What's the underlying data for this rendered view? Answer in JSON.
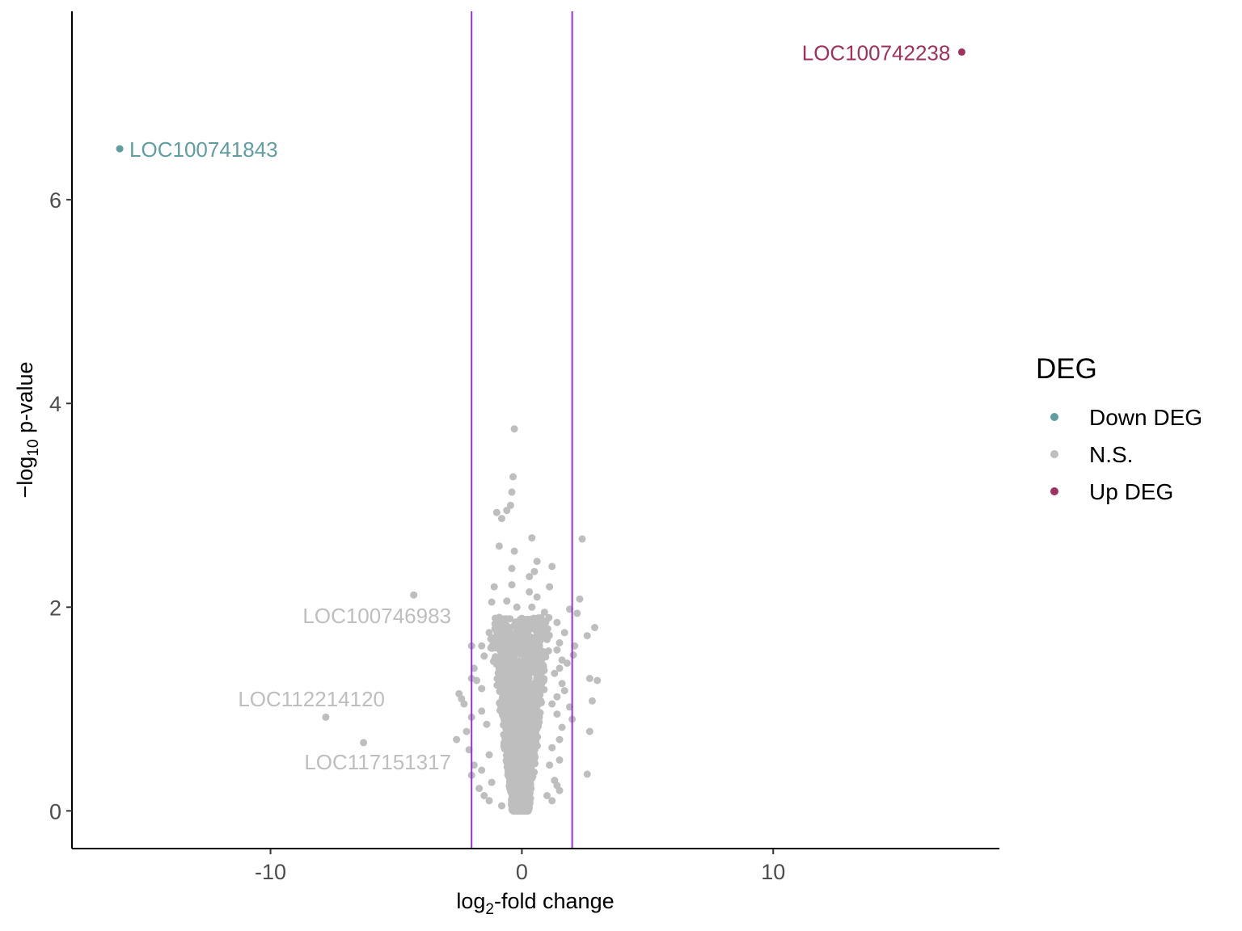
{
  "chart_data": {
    "type": "scatter",
    "title": "",
    "xlabel_main": "log",
    "xlabel_sub": "2",
    "xlabel_rest": "-fold change",
    "ylabel_prefix": "−log",
    "ylabel_sub": "10",
    "ylabel_rest": " p-value",
    "xlim": [
      -17.9,
      19.0
    ],
    "ylim": [
      -0.37,
      7.85
    ],
    "x_ticks": [
      -10,
      0,
      10
    ],
    "x_tick_labels": [
      "-10",
      "0",
      "10"
    ],
    "y_ticks": [
      0,
      2,
      4,
      6
    ],
    "y_tick_labels": [
      "0",
      "2",
      "4",
      "6"
    ],
    "grid": false,
    "thresholds": {
      "x": [
        -2,
        2
      ],
      "color": "#9b30d9"
    },
    "legend": {
      "title": "DEG",
      "position": "right",
      "items": [
        {
          "label": "Down DEG",
          "color": "#5f9ea0"
        },
        {
          "label": "N.S.",
          "color": "#bebebe"
        },
        {
          "label": "Up DEG",
          "color": "#a0305d"
        }
      ]
    },
    "colors": {
      "down": "#5f9ea0",
      "ns": "#bebebe",
      "up": "#a0305d"
    },
    "labeled_points": [
      {
        "label": "LOC100742238",
        "x": 17.5,
        "y": 7.45,
        "group": "up"
      },
      {
        "label": "LOC100741843",
        "x": -16.0,
        "y": 6.5,
        "group": "down"
      },
      {
        "label": "LOC100746983",
        "x": -4.3,
        "y": 2.12,
        "group": "ns"
      },
      {
        "label": "LOC112214120",
        "x": -7.8,
        "y": 0.92,
        "group": "ns"
      },
      {
        "label": "LOC117151317",
        "x": -6.3,
        "y": 0.67,
        "group": "ns"
      }
    ],
    "ns_points": [
      [
        -0.3,
        3.75
      ],
      [
        -0.35,
        3.28
      ],
      [
        -0.4,
        3.13
      ],
      [
        -0.45,
        3.0
      ],
      [
        -1.0,
        2.93
      ],
      [
        -0.6,
        2.95
      ],
      [
        -0.8,
        2.87
      ],
      [
        -0.9,
        2.6
      ],
      [
        0.4,
        2.68
      ],
      [
        2.4,
        2.67
      ],
      [
        -0.3,
        2.55
      ],
      [
        0.6,
        2.45
      ],
      [
        -0.4,
        2.38
      ],
      [
        1.2,
        2.4
      ],
      [
        0.5,
        2.35
      ],
      [
        0.3,
        2.3
      ],
      [
        -0.4,
        2.22
      ],
      [
        -1.1,
        2.2
      ],
      [
        1.1,
        2.2
      ],
      [
        0.3,
        2.15
      ],
      [
        0.6,
        2.1
      ],
      [
        -1.2,
        2.05
      ],
      [
        -0.6,
        2.06
      ],
      [
        2.3,
        2.08
      ],
      [
        0.4,
        2.0
      ],
      [
        1.9,
        1.98
      ],
      [
        -0.2,
        2.0
      ],
      [
        0.9,
        1.95
      ],
      [
        -0.9,
        1.9
      ],
      [
        2.2,
        1.94
      ],
      [
        1.4,
        1.85
      ],
      [
        -0.7,
        1.82
      ],
      [
        0.6,
        1.78
      ],
      [
        -1.3,
        1.75
      ],
      [
        2.9,
        1.8
      ],
      [
        1.7,
        1.75
      ],
      [
        -1.1,
        1.7
      ],
      [
        2.6,
        1.72
      ],
      [
        -0.5,
        1.68
      ],
      [
        1.5,
        1.65
      ],
      [
        -1.6,
        1.62
      ],
      [
        2.1,
        1.62
      ],
      [
        -2.0,
        1.62
      ],
      [
        1.4,
        1.58
      ],
      [
        2.05,
        1.53
      ],
      [
        -1.5,
        1.52
      ],
      [
        1.6,
        1.48
      ],
      [
        1.8,
        1.45
      ],
      [
        -1.0,
        1.44
      ],
      [
        1.5,
        1.4
      ],
      [
        -1.9,
        1.4
      ],
      [
        1.3,
        1.35
      ],
      [
        -2.0,
        1.3
      ],
      [
        2.7,
        1.3
      ],
      [
        3.0,
        1.28
      ],
      [
        -1.8,
        1.28
      ],
      [
        1.6,
        1.25
      ],
      [
        -1.6,
        1.2
      ],
      [
        1.7,
        1.18
      ],
      [
        -2.5,
        1.15
      ],
      [
        1.4,
        1.12
      ],
      [
        -2.4,
        1.1
      ],
      [
        2.8,
        1.08
      ],
      [
        -2.3,
        1.05
      ],
      [
        1.2,
        1.05
      ],
      [
        1.9,
        1.02
      ],
      [
        -1.6,
        0.98
      ],
      [
        1.4,
        0.95
      ],
      [
        -2.0,
        0.92
      ],
      [
        2.0,
        0.9
      ],
      [
        -1.4,
        0.85
      ],
      [
        1.6,
        0.82
      ],
      [
        -2.2,
        0.78
      ],
      [
        2.7,
        0.78
      ],
      [
        -2.6,
        0.7
      ],
      [
        1.5,
        0.7
      ],
      [
        -2.1,
        0.6
      ],
      [
        1.2,
        0.62
      ],
      [
        -1.3,
        0.55
      ],
      [
        1.5,
        0.5
      ],
      [
        -1.9,
        0.45
      ],
      [
        1.1,
        0.45
      ],
      [
        -1.6,
        0.4
      ],
      [
        -2.0,
        0.35
      ],
      [
        2.6,
        0.36
      ],
      [
        1.3,
        0.3
      ],
      [
        -1.2,
        0.28
      ],
      [
        1.4,
        0.25
      ],
      [
        -1.7,
        0.22
      ],
      [
        1.5,
        0.2
      ],
      [
        -1.5,
        0.15
      ],
      [
        1.0,
        0.15
      ],
      [
        -1.3,
        0.1
      ],
      [
        1.2,
        0.1
      ],
      [
        -0.8,
        0.05
      ]
    ]
  }
}
